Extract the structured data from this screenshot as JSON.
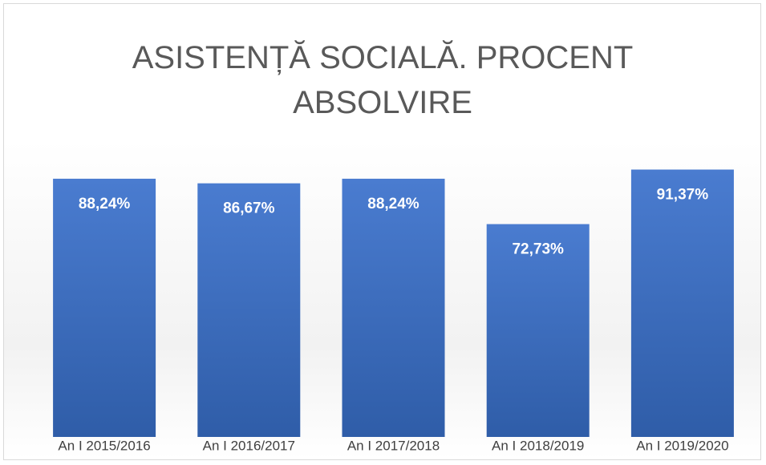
{
  "chart_data": {
    "type": "bar",
    "title": "ASISTENȚĂ SOCIALĂ. PROCENT ABSOLVIRE",
    "categories": [
      "An I 2015/2016",
      "An I 2016/2017",
      "An I 2017/2018",
      "An I 2018/2019",
      "An I 2019/2020"
    ],
    "values": [
      88.24,
      86.67,
      88.24,
      72.73,
      91.37
    ],
    "value_labels": [
      "88,24%",
      "86,67%",
      "88,24%",
      "72,73%",
      "91,37%"
    ],
    "color": "#4472c4"
  }
}
